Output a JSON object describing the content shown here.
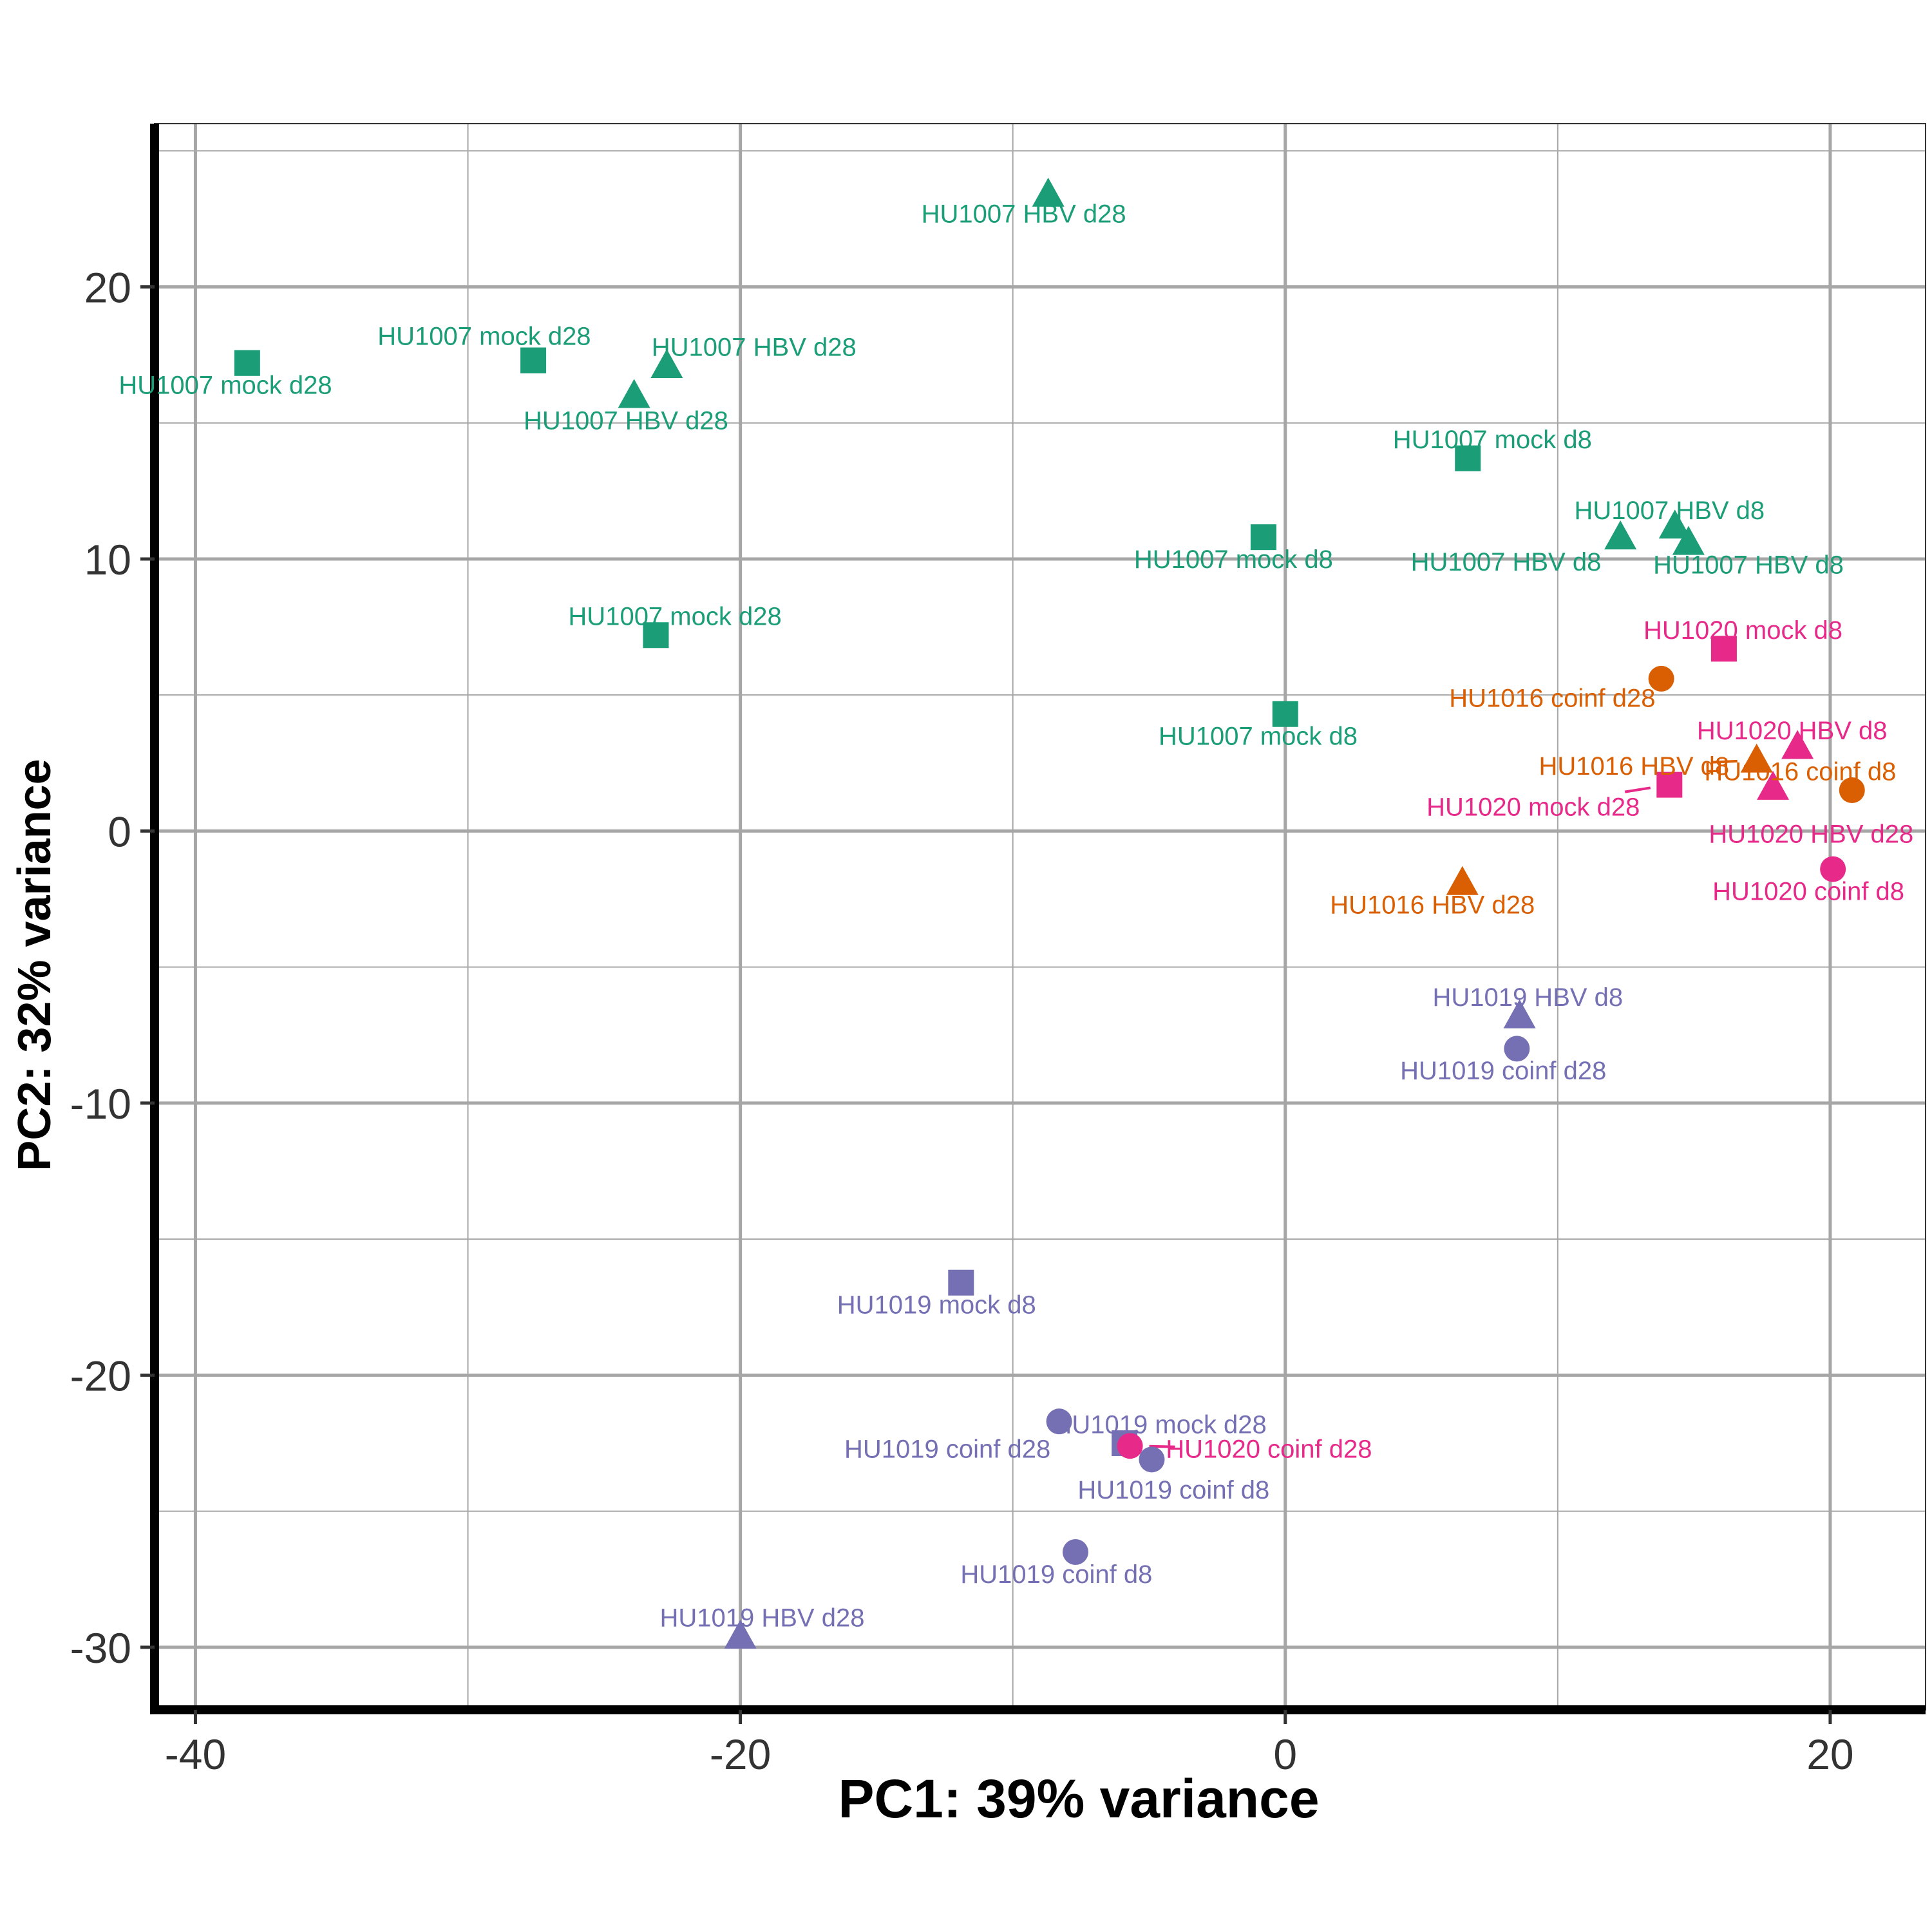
{
  "chart_data": {
    "type": "scatter",
    "title": "",
    "xlabel": "PC1: 39% variance",
    "ylabel": "PC2: 32% variance",
    "xlim": [
      -41.5,
      23.5
    ],
    "ylim": [
      -32.3,
      26
    ],
    "x_ticks": [
      "-40",
      "-20",
      "0",
      "20"
    ],
    "x_tick_values": [
      -40,
      -20,
      0,
      20
    ],
    "y_ticks": [
      "-30",
      "-20",
      "-10",
      "0",
      "10",
      "20"
    ],
    "y_tick_values": [
      -30,
      -20,
      -10,
      0,
      10,
      20
    ],
    "grid": true,
    "legend": "none",
    "group_colors": {
      "HU1007": "#1b9e77",
      "HU1016": "#d95f02",
      "HU1019": "#7570b3",
      "HU1020": "#e7298a"
    },
    "shapes": {
      "mock": "square",
      "HBV": "triangle",
      "coinf": "circle"
    },
    "points": [
      {
        "x": 20.1,
        "y": -1.4,
        "group": "HU1020",
        "shape": "circle",
        "label": "HU1020 coinf d8",
        "lx": 19.2,
        "ly": -2.2
      },
      {
        "x": 17.3,
        "y": 2.6,
        "group": "HU1016",
        "shape": "triangle",
        "label": "HU1016 HBV d8",
        "lx": 12.8,
        "ly": 2.4
      },
      {
        "x": 14.1,
        "y": 1.7,
        "group": "HU1020",
        "shape": "square",
        "label": "HU1020 mock d28",
        "lx": 9.1,
        "ly": 0.9
      },
      {
        "x": 18.8,
        "y": 3.1,
        "group": "HU1020",
        "shape": "triangle",
        "label": "HU1020 HBV d8",
        "lx": 18.6,
        "ly": 3.7
      },
      {
        "x": 17.9,
        "y": 1.6,
        "group": "HU1020",
        "shape": "triangle",
        "label": "HU1020 HBV d28",
        "lx": 19.3,
        "ly": -0.1
      },
      {
        "x": 14.3,
        "y": 11.2,
        "group": "HU1007",
        "shape": "triangle",
        "label": "HU1007 HBV d8",
        "lx": 14.1,
        "ly": 11.8
      },
      {
        "x": 14.8,
        "y": 10.6,
        "group": "HU1007",
        "shape": "triangle",
        "label": "HU1007 HBV d8",
        "lx": 17.0,
        "ly": 9.8
      },
      {
        "x": 12.3,
        "y": 10.8,
        "group": "HU1007",
        "shape": "triangle",
        "label": "HU1007 HBV d8",
        "lx": 8.1,
        "ly": 9.9
      },
      {
        "x": 6.7,
        "y": 13.7,
        "group": "HU1007",
        "shape": "square",
        "label": "HU1007 mock d8",
        "lx": 7.6,
        "ly": 14.4
      },
      {
        "x": 6.5,
        "y": -1.9,
        "group": "HU1016",
        "shape": "triangle",
        "label": "HU1016 HBV d28",
        "lx": 5.4,
        "ly": -2.7
      },
      {
        "x": 0.0,
        "y": 4.3,
        "group": "HU1007",
        "shape": "square",
        "label": "HU1007 mock d8",
        "lx": -1.0,
        "ly": 3.5
      },
      {
        "x": -0.8,
        "y": 10.8,
        "group": "HU1007",
        "shape": "square",
        "label": "HU1007 mock d8",
        "lx": -1.9,
        "ly": 10.0
      },
      {
        "x": -8.7,
        "y": 23.4,
        "group": "HU1007",
        "shape": "triangle",
        "label": "HU1007 HBV d28",
        "lx": -9.6,
        "ly": 22.7
      },
      {
        "x": -22.7,
        "y": 17.1,
        "group": "HU1007",
        "shape": "triangle",
        "label": "HU1007 HBV d28",
        "lx": -19.5,
        "ly": 17.8
      },
      {
        "x": -23.9,
        "y": 16.0,
        "group": "HU1007",
        "shape": "triangle",
        "label": "HU1007 HBV d28",
        "lx": -24.2,
        "ly": 15.1
      },
      {
        "x": -27.6,
        "y": 17.3,
        "group": "HU1007",
        "shape": "square",
        "label": "HU1007 mock d28",
        "lx": -29.4,
        "ly": 18.2
      },
      {
        "x": -38.1,
        "y": 17.2,
        "group": "HU1007",
        "shape": "square",
        "label": "HU1007 mock d28",
        "lx": -38.9,
        "ly": 16.4
      },
      {
        "x": -23.1,
        "y": 7.2,
        "group": "HU1007",
        "shape": "square",
        "label": "HU1007 mock d28",
        "lx": -22.4,
        "ly": 7.9
      },
      {
        "x": 8.6,
        "y": -6.8,
        "group": "HU1019",
        "shape": "triangle",
        "label": "HU1019 HBV d8",
        "lx": 8.9,
        "ly": -6.1
      },
      {
        "x": 8.5,
        "y": -8.0,
        "group": "HU1019",
        "shape": "circle",
        "label": "HU1019 coinf d28",
        "lx": 8.0,
        "ly": -8.8
      },
      {
        "x": -11.9,
        "y": -16.6,
        "group": "HU1019",
        "shape": "square",
        "label": "HU1019 mock d8",
        "lx": -12.8,
        "ly": -17.4
      },
      {
        "x": -5.9,
        "y": -22.5,
        "group": "HU1019",
        "shape": "square",
        "label": "HU1019 mock d28",
        "lx": -4.6,
        "ly": -21.8
      },
      {
        "x": -8.3,
        "y": -21.7,
        "group": "HU1019",
        "shape": "circle",
        "label": "HU1019 coinf d28",
        "lx": -12.4,
        "ly": -22.7
      },
      {
        "x": -5.7,
        "y": -22.6,
        "group": "HU1020",
        "shape": "circle",
        "label": "HU1020 coinf d28",
        "lx": -0.6,
        "ly": -22.7
      },
      {
        "x": -4.9,
        "y": -23.1,
        "group": "HU1019",
        "shape": "circle",
        "label": "HU1019 coinf d8",
        "lx": -4.1,
        "ly": -24.2
      },
      {
        "x": -7.7,
        "y": -26.5,
        "group": "HU1019",
        "shape": "circle",
        "label": "HU1019 coinf d8",
        "lx": -8.4,
        "ly": -27.3
      },
      {
        "x": -20.0,
        "y": -29.6,
        "group": "HU1019",
        "shape": "triangle",
        "label": "HU1019 HBV d28",
        "lx": -19.2,
        "ly": -28.9
      },
      {
        "x": 13.8,
        "y": 5.6,
        "group": "HU1016",
        "shape": "circle",
        "label": "HU1016 coinf d28",
        "lx": 9.8,
        "ly": 4.9
      },
      {
        "x": 16.1,
        "y": 6.7,
        "group": "HU1020",
        "shape": "square",
        "label": "HU1020 mock d8",
        "lx": 16.8,
        "ly": 7.4
      },
      {
        "x": 20.8,
        "y": 1.5,
        "group": "HU1016",
        "shape": "circle",
        "label": "HU1016 coinf d8",
        "lx": 18.9,
        "ly": 2.2
      }
    ]
  }
}
